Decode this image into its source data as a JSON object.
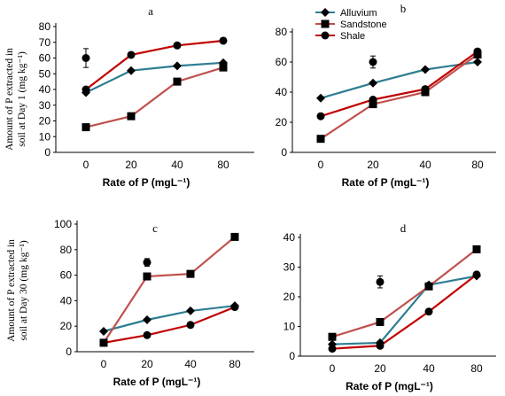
{
  "colors": {
    "alluvium": "#2E7D92",
    "sandstone": "#C0504D",
    "shale": "#C00000",
    "marker": "#000000",
    "axis": "#000000"
  },
  "y_axis_labels": {
    "day1": "Amount of P extracted in soil at Day 1 (mg kg⁻¹)",
    "day30": "Amount of P extracted in soil at Day 30 (mg kg⁻¹)"
  },
  "chart_data": [
    {
      "panel": "a",
      "type": "line",
      "categories": [
        "0",
        "20",
        "40",
        "80"
      ],
      "xlabel": "Rate of P (mgL⁻¹)",
      "ylabel": "Amount of P extracted in soil at Day 1 (mg kg⁻¹)",
      "ylim": [
        0,
        80
      ],
      "yticks": [
        0,
        10,
        20,
        30,
        40,
        50,
        60,
        70,
        80
      ],
      "legend": false,
      "series": [
        {
          "name": "Alluvium",
          "marker": "diamond",
          "values": [
            38,
            52,
            55,
            57
          ]
        },
        {
          "name": "Sandstone",
          "marker": "square",
          "values": [
            16,
            23,
            45,
            54
          ]
        },
        {
          "name": "Shale",
          "marker": "circle",
          "values": [
            40,
            62,
            68,
            71
          ]
        }
      ],
      "error_point": {
        "category": "0",
        "value": 60,
        "err": 6
      }
    },
    {
      "panel": "b",
      "type": "line",
      "categories": [
        "0",
        "20",
        "40",
        "80"
      ],
      "xlabel": "Rate of P (mgL⁻¹)",
      "ylabel": "",
      "ylim": [
        0,
        80
      ],
      "yticks": [
        0,
        20,
        40,
        60,
        80
      ],
      "legend": true,
      "legend_position": "top-left",
      "series": [
        {
          "name": "Alluvium",
          "marker": "diamond",
          "values": [
            36,
            46,
            55,
            60
          ]
        },
        {
          "name": "Sandstone",
          "marker": "square",
          "values": [
            9,
            32,
            40,
            65
          ]
        },
        {
          "name": "Shale",
          "marker": "circle",
          "values": [
            24,
            35,
            42,
            67
          ]
        }
      ],
      "error_point": {
        "category": "20",
        "value": 60,
        "err": 4
      }
    },
    {
      "panel": "c",
      "type": "line",
      "categories": [
        "0",
        "20",
        "40",
        "80"
      ],
      "xlabel": "Rate of P (mgL⁻¹)",
      "ylabel": "Amount of P extracted in soil at Day 30 (mg kg⁻¹)",
      "ylim": [
        0,
        100
      ],
      "yticks": [
        0,
        20,
        40,
        60,
        80,
        100
      ],
      "legend": false,
      "series": [
        {
          "name": "Alluvium",
          "marker": "diamond",
          "values": [
            16,
            25,
            32,
            36
          ]
        },
        {
          "name": "Sandstone",
          "marker": "square",
          "values": [
            7,
            59,
            61,
            90
          ]
        },
        {
          "name": "Shale",
          "marker": "circle",
          "values": [
            7,
            13,
            21,
            35
          ]
        }
      ],
      "error_point": {
        "category": "20",
        "value": 70,
        "err": 3
      }
    },
    {
      "panel": "d",
      "type": "line",
      "categories": [
        "0",
        "20",
        "40",
        "80"
      ],
      "xlabel": "Rate of P (mgL⁻¹)",
      "ylabel": "",
      "ylim": [
        0,
        40
      ],
      "yticks": [
        0,
        10,
        20,
        30,
        40
      ],
      "legend": false,
      "series": [
        {
          "name": "Alluvium",
          "marker": "diamond",
          "values": [
            4,
            4.5,
            24,
            27
          ]
        },
        {
          "name": "Sandstone",
          "marker": "square",
          "values": [
            6.5,
            11.5,
            23.5,
            36
          ]
        },
        {
          "name": "Shale",
          "marker": "circle",
          "values": [
            2.5,
            3.5,
            15,
            27.5
          ]
        }
      ],
      "error_point": {
        "category": "20",
        "value": 25,
        "err": 2
      }
    }
  ]
}
